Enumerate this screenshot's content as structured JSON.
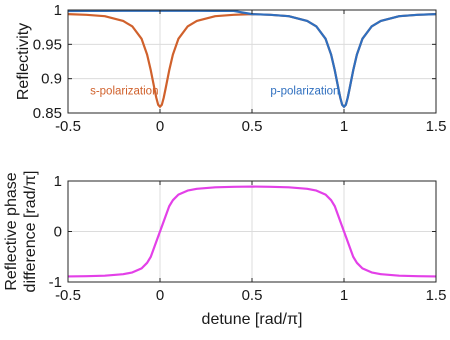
{
  "chart_data": [
    {
      "type": "line",
      "xlabel": "",
      "ylabel": "Reflectivity",
      "xlim": [
        -0.5,
        1.5
      ],
      "ylim": [
        0.85,
        1.0
      ],
      "xticks": [
        -0.5,
        0,
        0.5,
        1,
        1.5
      ],
      "xtick_labels": [
        "-0.5",
        "0",
        "0.5",
        "1",
        "1.5"
      ],
      "yticks": [
        0.85,
        0.9,
        0.95,
        1.0
      ],
      "ytick_labels": [
        "0.85",
        "0.9",
        "0.95",
        "1"
      ],
      "grid": true,
      "series": [
        {
          "name": "s-polarization",
          "color": "#d0612c",
          "x": [
            -0.5,
            -0.4,
            -0.3,
            -0.2,
            -0.15,
            -0.1,
            -0.07,
            -0.05,
            -0.03,
            -0.02,
            -0.01,
            0,
            0.01,
            0.02,
            0.03,
            0.05,
            0.07,
            0.1,
            0.15,
            0.2,
            0.3,
            0.4,
            0.5,
            0.6,
            0.7,
            0.8,
            0.85,
            0.9,
            0.93,
            0.95,
            0.97,
            0.98,
            0.99,
            1.0,
            1.01,
            1.02,
            1.03,
            1.05,
            1.07,
            1.1,
            1.15,
            1.2,
            1.3,
            1.4,
            1.5
          ],
          "y": [
            0.994,
            0.993,
            0.991,
            0.984,
            0.976,
            0.958,
            0.935,
            0.912,
            0.885,
            0.872,
            0.862,
            0.859,
            0.862,
            0.872,
            0.885,
            0.912,
            0.935,
            0.958,
            0.976,
            0.984,
            0.991,
            0.993,
            0.994,
            0.993,
            0.991,
            0.984,
            0.976,
            0.958,
            0.935,
            0.912,
            0.885,
            0.872,
            0.862,
            0.859,
            0.862,
            0.872,
            0.885,
            0.912,
            0.935,
            0.958,
            0.976,
            0.984,
            0.991,
            0.993,
            0.994
          ]
        },
        {
          "name": "p-polarization",
          "color": "#2f6fbf",
          "x": [
            -0.5,
            -0.4,
            -0.3,
            -0.2,
            -0.15,
            -0.1,
            -0.07,
            -0.05,
            -0.03,
            -0.02,
            -0.01,
            0,
            0.01,
            0.02,
            0.03,
            0.05,
            0.07,
            0.1,
            0.15,
            0.2,
            0.3,
            0.4,
            0.5,
            0.6,
            0.7,
            0.8,
            0.85,
            0.9,
            0.93,
            0.95,
            0.97,
            0.98,
            0.99,
            1.0,
            1.01,
            1.02,
            1.03,
            1.05,
            1.07,
            1.1,
            1.15,
            1.2,
            1.3,
            1.4,
            1.5
          ],
          "y": [
            0.9985,
            0.9986,
            0.9987,
            0.9988,
            0.9988,
            0.9988,
            0.9988,
            0.9988,
            0.9988,
            0.9988,
            0.9988,
            0.9988,
            0.9988,
            0.9988,
            0.9988,
            0.9988,
            0.9988,
            0.9988,
            0.9988,
            0.9988,
            0.9987,
            0.9986,
            0.994,
            0.993,
            0.991,
            0.984,
            0.976,
            0.958,
            0.935,
            0.912,
            0.885,
            0.872,
            0.862,
            0.859,
            0.862,
            0.872,
            0.885,
            0.912,
            0.935,
            0.958,
            0.976,
            0.984,
            0.991,
            0.993,
            0.994
          ]
        }
      ],
      "annotations": [
        {
          "text": "s-polarization",
          "x": -0.38,
          "y": 0.877,
          "color": "#d0612c"
        },
        {
          "text": "p-polarization",
          "x": 0.6,
          "y": 0.877,
          "color": "#2f6fbf"
        }
      ]
    },
    {
      "type": "line",
      "xlabel": "detune [rad/π]",
      "ylabel": "Reflective phase difference [rad/π]",
      "ylabel_lines": [
        "Reflective phase",
        "difference [rad/π]"
      ],
      "xlim": [
        -0.5,
        1.5
      ],
      "ylim": [
        -1,
        1
      ],
      "xticks": [
        -0.5,
        0,
        0.5,
        1,
        1.5
      ],
      "xtick_labels": [
        "-0.5",
        "0",
        "0.5",
        "1",
        "1.5"
      ],
      "yticks": [
        -1,
        0,
        1
      ],
      "ytick_labels": [
        "-1",
        "0",
        "1"
      ],
      "grid": true,
      "series": [
        {
          "color": "#e340e8",
          "x": [
            -0.5,
            -0.4,
            -0.3,
            -0.2,
            -0.15,
            -0.1,
            -0.07,
            -0.05,
            -0.03,
            -0.01,
            0,
            0.01,
            0.03,
            0.05,
            0.07,
            0.1,
            0.15,
            0.2,
            0.3,
            0.4,
            0.5,
            0.6,
            0.7,
            0.8,
            0.85,
            0.9,
            0.93,
            0.95,
            0.97,
            0.99,
            1.0,
            1.01,
            1.03,
            1.05,
            1.07,
            1.1,
            1.15,
            1.2,
            1.3,
            1.4,
            1.5
          ],
          "y": [
            -0.89,
            -0.885,
            -0.875,
            -0.845,
            -0.81,
            -0.73,
            -0.62,
            -0.5,
            -0.3,
            -0.1,
            0.0,
            0.1,
            0.3,
            0.5,
            0.62,
            0.73,
            0.81,
            0.845,
            0.875,
            0.885,
            0.89,
            0.885,
            0.875,
            0.845,
            0.81,
            0.73,
            0.62,
            0.5,
            0.3,
            0.1,
            0.0,
            -0.1,
            -0.3,
            -0.5,
            -0.62,
            -0.73,
            -0.81,
            -0.845,
            -0.875,
            -0.885,
            -0.89
          ]
        }
      ]
    }
  ]
}
